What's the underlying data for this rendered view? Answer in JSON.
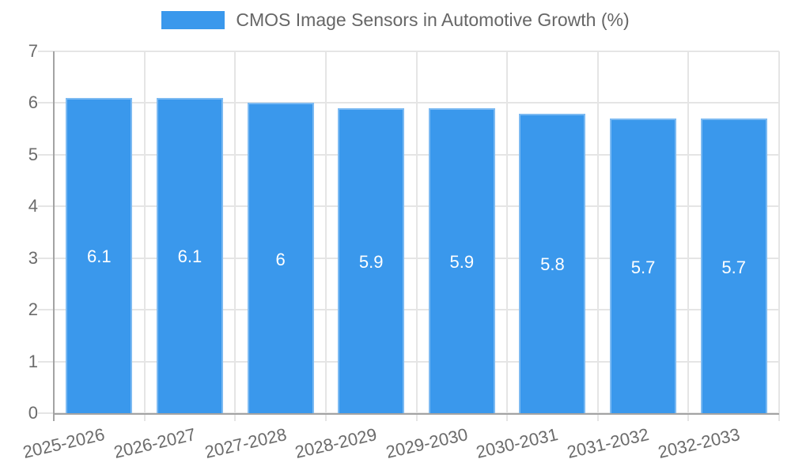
{
  "chart_data": {
    "type": "bar",
    "title": "CMOS Image Sensors in Automotive Growth (%)",
    "legend": {
      "position": "top",
      "label": "CMOS Image Sensors in Automotive Growth (%)"
    },
    "categories": [
      "2025-2026",
      "2026-2027",
      "2027-2028",
      "2028-2029",
      "2029-2030",
      "2030-2031",
      "2031-2032",
      "2032-2033"
    ],
    "values": [
      6.1,
      6.1,
      6,
      5.9,
      5.9,
      5.8,
      5.7,
      5.7
    ],
    "value_labels": [
      "6.1",
      "6.1",
      "6",
      "5.9",
      "5.9",
      "5.8",
      "5.7",
      "5.7"
    ],
    "xlabel": "",
    "ylabel": "",
    "ylim": [
      0,
      7
    ],
    "yticks": [
      0,
      1,
      2,
      3,
      4,
      5,
      6,
      7
    ],
    "grid": true,
    "colors": {
      "bar_fill": "#3a98ec",
      "bar_border": "#7cbaf2",
      "grid": "#e5e5e5",
      "axis": "#a3a3a3",
      "tick_text": "#6b6b6b",
      "title_text": "#666666",
      "value_text": "#ffffff"
    }
  }
}
